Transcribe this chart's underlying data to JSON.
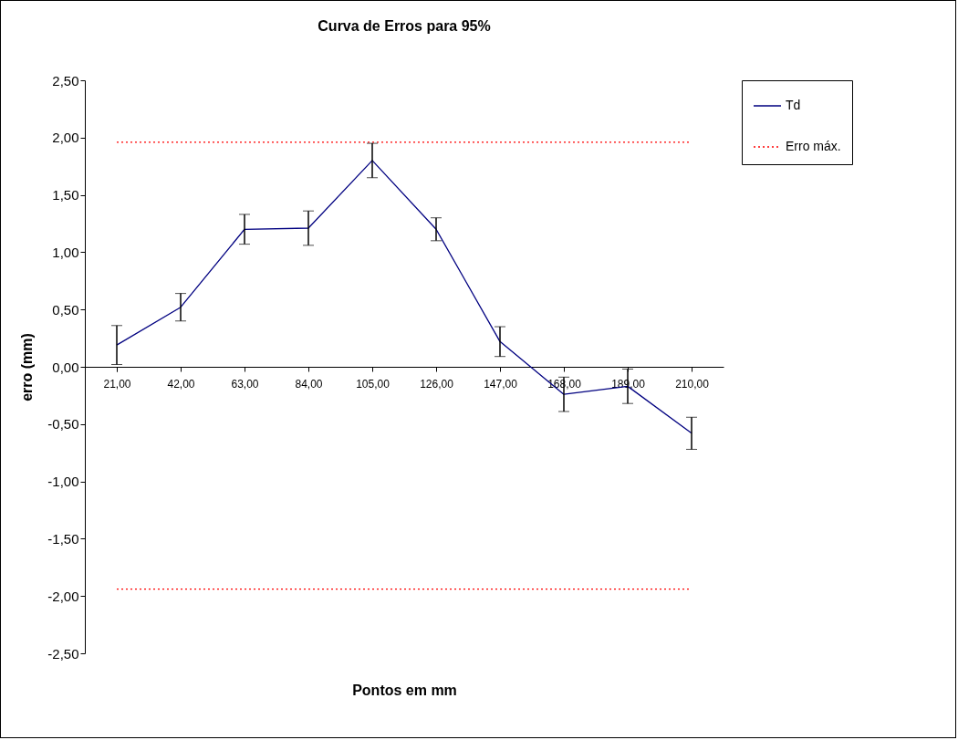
{
  "chart_data": {
    "type": "line",
    "title": "Curva de Erros para 95%",
    "xlabel": "Pontos em mm",
    "ylabel": "erro (mm)",
    "categories": [
      "21,00",
      "42,00",
      "63,00",
      "84,00",
      "105,00",
      "126,00",
      "147,00",
      "168,00",
      "189,00",
      "210,00"
    ],
    "series": [
      {
        "name": "Td",
        "color": "#000080",
        "line_style": "solid",
        "values": [
          0.19,
          0.52,
          1.2,
          1.21,
          1.8,
          1.2,
          0.22,
          -0.24,
          -0.17,
          -0.58
        ],
        "errors": [
          0.17,
          0.12,
          0.13,
          0.15,
          0.15,
          0.1,
          0.13,
          0.15,
          0.15,
          0.14
        ]
      },
      {
        "name": "Erro máx.",
        "color": "#ff0000",
        "line_style": "dotted",
        "values": [
          1.96,
          1.96,
          1.96,
          1.96,
          1.96,
          1.96,
          1.96,
          1.96,
          1.96,
          1.96
        ]
      },
      {
        "color": "#ff0000",
        "line_style": "dotted",
        "values": [
          -1.94,
          -1.94,
          -1.94,
          -1.94,
          -1.94,
          -1.94,
          -1.94,
          -1.94,
          -1.94,
          -1.94
        ]
      }
    ],
    "ylim": [
      -2.5,
      2.5
    ],
    "yticks": [
      {
        "value": -2.5,
        "label": "-2,50"
      },
      {
        "value": -2,
        "label": "-2,00"
      },
      {
        "value": -1.5,
        "label": "-1,50"
      },
      {
        "value": -1,
        "label": "-1,00"
      },
      {
        "value": -0.5,
        "label": "-0,50"
      },
      {
        "value": 0,
        "label": "0,00"
      },
      {
        "value": 0.5,
        "label": "0,50"
      },
      {
        "value": 1,
        "label": "1,00"
      },
      {
        "value": 1.5,
        "label": "1,50"
      },
      {
        "value": 2,
        "label": "2,00"
      },
      {
        "value": 2.5,
        "label": "2,50"
      }
    ],
    "grid": false,
    "legend": "right",
    "marker": "none"
  }
}
